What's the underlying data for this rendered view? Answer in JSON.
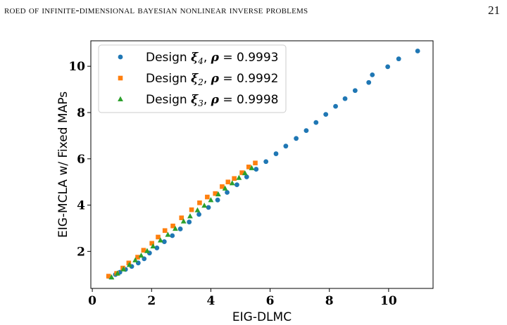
{
  "header": {
    "running_title": "roed of infinite-dimensional bayesian nonlinear inverse problems",
    "page_number": "21"
  },
  "chart_data": {
    "type": "scatter",
    "xlabel": "EIG-DLMC",
    "ylabel": "EIG-MCLA w/ Fixed MAPs",
    "xlim": [
      -0.05,
      11.5
    ],
    "ylim": [
      0.4,
      11.1
    ],
    "xticks": [
      0,
      2,
      4,
      6,
      8,
      10
    ],
    "yticks": [
      2,
      4,
      6,
      8,
      10
    ],
    "legend_position": "top-left",
    "grid": false,
    "series": [
      {
        "name": "Design ξ4, ρ = 0.9993",
        "legend_prefix": "Design ",
        "legend_symbol": "ξ",
        "legend_sub": "4",
        "legend_rho": ", ρ = ",
        "legend_value": "0.9993",
        "color": "#1f77b4",
        "marker": "circle",
        "x": [
          0.55,
          0.78,
          0.93,
          1.12,
          1.33,
          1.55,
          1.75,
          1.93,
          2.18,
          2.43,
          2.7,
          2.97,
          3.27,
          3.6,
          3.92,
          4.23,
          4.55,
          4.88,
          5.21,
          5.53,
          5.86,
          6.2,
          6.53,
          6.88,
          7.22,
          7.55,
          7.88,
          8.21,
          8.53,
          8.87,
          9.33,
          9.45,
          9.97,
          10.34,
          10.98
        ],
        "y": [
          0.92,
          1.0,
          1.1,
          1.22,
          1.35,
          1.5,
          1.68,
          1.93,
          2.15,
          2.42,
          2.68,
          2.97,
          3.27,
          3.6,
          3.9,
          4.22,
          4.55,
          4.88,
          5.22,
          5.55,
          5.88,
          6.22,
          6.55,
          6.88,
          7.22,
          7.57,
          7.92,
          8.27,
          8.6,
          8.95,
          9.3,
          9.63,
          9.98,
          10.32,
          10.66
        ]
      },
      {
        "name": "Design ξ2, ρ = 0.9992",
        "legend_prefix": "Design ",
        "legend_symbol": "ξ",
        "legend_sub": "2",
        "legend_rho": ", ρ = ",
        "legend_value": "0.9992",
        "color": "#ff7f0e",
        "marker": "square",
        "x": [
          0.55,
          0.82,
          1.03,
          1.23,
          1.53,
          1.73,
          2.01,
          2.22,
          2.45,
          2.72,
          3.01,
          3.35,
          3.62,
          3.88,
          4.15,
          4.38,
          4.58,
          4.79,
          5.05,
          5.28,
          5.5
        ],
        "y": [
          0.93,
          1.05,
          1.28,
          1.5,
          1.75,
          2.05,
          2.35,
          2.62,
          2.9,
          3.1,
          3.45,
          3.8,
          4.1,
          4.35,
          4.5,
          4.8,
          5.0,
          5.15,
          5.4,
          5.65,
          5.82
        ]
      },
      {
        "name": "Design ξ3, ρ = 0.9998",
        "legend_prefix": "Design ",
        "legend_symbol": "ξ",
        "legend_sub": "3",
        "legend_rho": ", ρ = ",
        "legend_value": "0.9998",
        "color": "#2ca02c",
        "marker": "triangle",
        "x": [
          0.65,
          0.85,
          1.05,
          1.25,
          1.45,
          1.65,
          1.85,
          2.05,
          2.3,
          2.55,
          2.8,
          3.08,
          3.3,
          3.55,
          3.78,
          4.0,
          4.25,
          4.48,
          4.72,
          4.95,
          5.15,
          5.38
        ],
        "y": [
          0.88,
          1.05,
          1.23,
          1.42,
          1.62,
          1.82,
          2.02,
          2.22,
          2.48,
          2.72,
          2.98,
          3.3,
          3.52,
          3.78,
          3.98,
          4.22,
          4.47,
          4.72,
          4.95,
          5.18,
          5.38,
          5.6
        ]
      }
    ]
  }
}
